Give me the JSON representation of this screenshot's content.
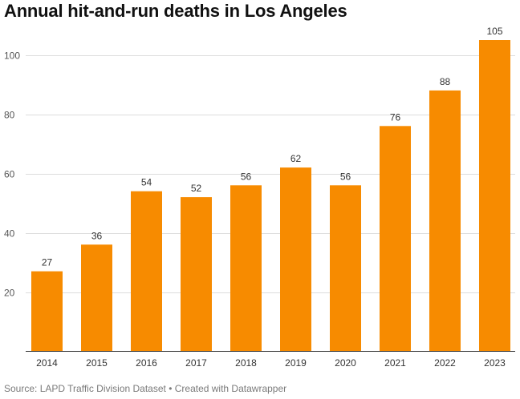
{
  "title": "Annual hit-and-run deaths in Los Angeles",
  "footer": {
    "source_text": "Source: LAPD Traffic Division Dataset • Created with Datawrapper"
  },
  "colors": {
    "bar": "#f78b00",
    "grid": "#dddddd",
    "axis": "#333333"
  },
  "chart_data": {
    "type": "bar",
    "title": "Annual hit-and-run deaths in Los Angeles",
    "categories": [
      "2014",
      "2015",
      "2016",
      "2017",
      "2018",
      "2019",
      "2020",
      "2021",
      "2022",
      "2023"
    ],
    "values": [
      27,
      36,
      54,
      52,
      56,
      62,
      56,
      76,
      88,
      105
    ],
    "xlabel": "",
    "ylabel": "",
    "ylim": [
      0,
      110
    ],
    "yticks": [
      20,
      40,
      60,
      80,
      100
    ],
    "grid": true,
    "legend": "none",
    "data_labels": true
  }
}
